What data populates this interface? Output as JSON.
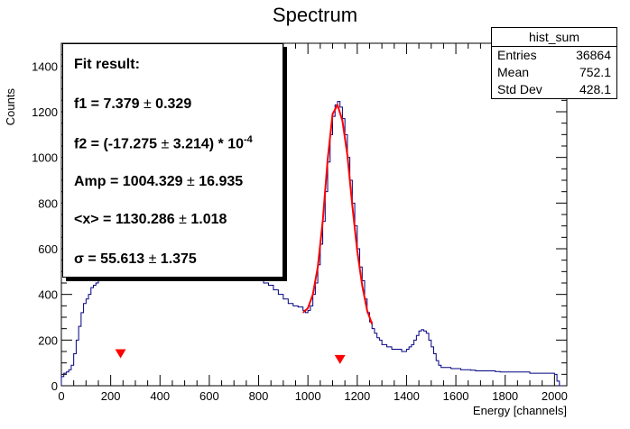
{
  "chart_data": {
    "type": "histogram",
    "title": "Spectrum",
    "xlabel": "Energy [channels]",
    "ylabel": "Counts",
    "xlim": [
      0,
      2050
    ],
    "ylim": [
      0,
      1500
    ],
    "xticks": [
      "0",
      "200",
      "400",
      "600",
      "800",
      "1000",
      "1200",
      "1400",
      "1600",
      "1800",
      "2000"
    ],
    "yticks": [
      "0",
      "200",
      "400",
      "600",
      "800",
      "1000",
      "1200",
      "1400"
    ],
    "histogram": {
      "name": "hist_sum",
      "color": "#000080",
      "points": [
        [
          0,
          40
        ],
        [
          10,
          55
        ],
        [
          20,
          60
        ],
        [
          30,
          70
        ],
        [
          40,
          90
        ],
        [
          50,
          140
        ],
        [
          60,
          200
        ],
        [
          70,
          260
        ],
        [
          80,
          320
        ],
        [
          90,
          360
        ],
        [
          100,
          380
        ],
        [
          110,
          400
        ],
        [
          120,
          430
        ],
        [
          130,
          440
        ],
        [
          140,
          450
        ],
        [
          150,
          460
        ],
        [
          160,
          470
        ],
        [
          170,
          480
        ],
        [
          180,
          480
        ],
        [
          190,
          470
        ],
        [
          200,
          480
        ],
        [
          210,
          485
        ],
        [
          220,
          490
        ],
        [
          230,
          495
        ],
        [
          240,
          500
        ],
        [
          250,
          505
        ],
        [
          260,
          510
        ],
        [
          280,
          512
        ],
        [
          300,
          515
        ],
        [
          320,
          518
        ],
        [
          340,
          520
        ],
        [
          360,
          522
        ],
        [
          380,
          525
        ],
        [
          400,
          528
        ],
        [
          420,
          530
        ],
        [
          440,
          532
        ],
        [
          460,
          535
        ],
        [
          480,
          538
        ],
        [
          500,
          540
        ],
        [
          520,
          542
        ],
        [
          540,
          545
        ],
        [
          560,
          548
        ],
        [
          580,
          550
        ],
        [
          600,
          552
        ],
        [
          620,
          555
        ],
        [
          640,
          558
        ],
        [
          660,
          560
        ],
        [
          680,
          558
        ],
        [
          700,
          555
        ],
        [
          720,
          545
        ],
        [
          740,
          530
        ],
        [
          760,
          510
        ],
        [
          780,
          490
        ],
        [
          800,
          460
        ],
        [
          820,
          450
        ],
        [
          840,
          440
        ],
        [
          860,
          420
        ],
        [
          880,
          400
        ],
        [
          900,
          380
        ],
        [
          920,
          360
        ],
        [
          940,
          350
        ],
        [
          960,
          345
        ],
        [
          980,
          330
        ],
        [
          990,
          320
        ],
        [
          1000,
          330
        ],
        [
          1010,
          350
        ],
        [
          1020,
          400
        ],
        [
          1030,
          450
        ],
        [
          1040,
          530
        ],
        [
          1050,
          620
        ],
        [
          1060,
          720
        ],
        [
          1070,
          850
        ],
        [
          1080,
          980
        ],
        [
          1090,
          1100
        ],
        [
          1100,
          1180
        ],
        [
          1110,
          1230
        ],
        [
          1120,
          1245
        ],
        [
          1130,
          1220
        ],
        [
          1140,
          1170
        ],
        [
          1150,
          1100
        ],
        [
          1160,
          1000
        ],
        [
          1170,
          900
        ],
        [
          1180,
          800
        ],
        [
          1190,
          700
        ],
        [
          1200,
          600
        ],
        [
          1210,
          520
        ],
        [
          1220,
          460
        ],
        [
          1230,
          380
        ],
        [
          1240,
          320
        ],
        [
          1250,
          280
        ],
        [
          1260,
          250
        ],
        [
          1270,
          230
        ],
        [
          1280,
          210
        ],
        [
          1290,
          200
        ],
        [
          1300,
          180
        ],
        [
          1320,
          170
        ],
        [
          1340,
          160
        ],
        [
          1360,
          160
        ],
        [
          1380,
          150
        ],
        [
          1400,
          160
        ],
        [
          1410,
          170
        ],
        [
          1420,
          180
        ],
        [
          1430,
          200
        ],
        [
          1440,
          220
        ],
        [
          1450,
          240
        ],
        [
          1460,
          245
        ],
        [
          1470,
          240
        ],
        [
          1480,
          230
        ],
        [
          1490,
          200
        ],
        [
          1500,
          170
        ],
        [
          1510,
          140
        ],
        [
          1520,
          110
        ],
        [
          1530,
          90
        ],
        [
          1540,
          80
        ],
        [
          1560,
          80
        ],
        [
          1580,
          75
        ],
        [
          1600,
          75
        ],
        [
          1620,
          70
        ],
        [
          1640,
          70
        ],
        [
          1660,
          68
        ],
        [
          1680,
          65
        ],
        [
          1700,
          65
        ],
        [
          1720,
          65
        ],
        [
          1740,
          65
        ],
        [
          1760,
          62
        ],
        [
          1780,
          60
        ],
        [
          1800,
          60
        ],
        [
          1820,
          60
        ],
        [
          1840,
          60
        ],
        [
          1860,
          60
        ],
        [
          1880,
          60
        ],
        [
          1900,
          55
        ],
        [
          1920,
          55
        ],
        [
          1940,
          55
        ],
        [
          1960,
          55
        ],
        [
          1980,
          55
        ],
        [
          2000,
          50
        ],
        [
          2010,
          20
        ],
        [
          2020,
          0
        ]
      ]
    },
    "fit": {
      "color": "#ff0000",
      "points": [
        [
          980,
          320
        ],
        [
          1000,
          340
        ],
        [
          1020,
          400
        ],
        [
          1040,
          520
        ],
        [
          1060,
          720
        ],
        [
          1080,
          990
        ],
        [
          1100,
          1190
        ],
        [
          1120,
          1230
        ],
        [
          1140,
          1160
        ],
        [
          1160,
          1010
        ],
        [
          1180,
          790
        ],
        [
          1200,
          590
        ],
        [
          1220,
          440
        ],
        [
          1240,
          330
        ],
        [
          1260,
          270
        ]
      ]
    },
    "markers": [
      {
        "x": 240,
        "y": 140,
        "color": "#ff0000"
      },
      {
        "x": 1130,
        "y": 115,
        "color": "#ff0000"
      }
    ]
  },
  "stats": {
    "title": "hist_sum",
    "rows": [
      {
        "label": "Entries",
        "value": "36864"
      },
      {
        "label": "Mean",
        "value": "752.1"
      },
      {
        "label": "Std Dev",
        "value": "428.1"
      }
    ]
  },
  "fit_box": {
    "title": "Fit result:",
    "lines": [
      {
        "text": "f1 = 7.379 ",
        "pm": "±",
        "text2": " 0.329",
        "sup": ""
      },
      {
        "text": "f2 = (-17.275 ",
        "pm": "±",
        "text2": " 3.214) * 10",
        "sup": "-4"
      },
      {
        "text": "Amp = 1004.329 ",
        "pm": "±",
        "text2": " 16.935",
        "sup": ""
      },
      {
        "text": "<x> = 1130.286 ",
        "pm": "±",
        "text2": " 1.018",
        "sup": ""
      },
      {
        "text": "σ = 55.613 ",
        "pm": "±",
        "text2": " 1.375",
        "sup": ""
      }
    ]
  }
}
